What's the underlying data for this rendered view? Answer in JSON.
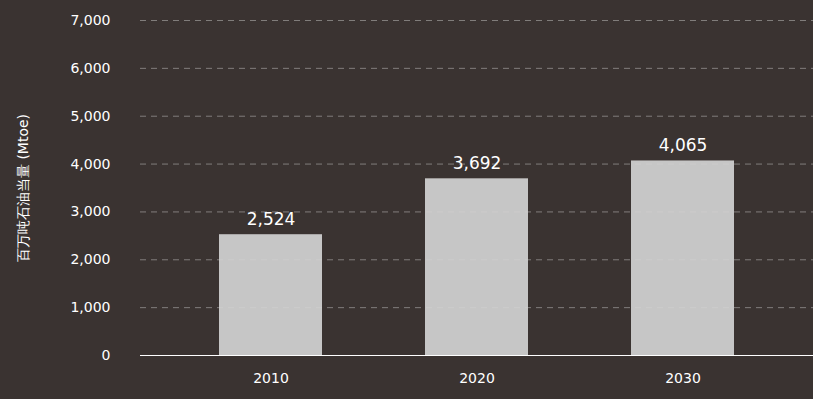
{
  "chart_data": {
    "type": "bar",
    "y_label": "百万吨石油当量 (Mtoe)",
    "categories": [
      "2010",
      "2020",
      "2030"
    ],
    "values": [
      2524,
      3692,
      4065
    ],
    "value_labels": [
      "2,524",
      "3,692",
      "4,065"
    ],
    "data_labels": true,
    "color": "#d2d2d2",
    "ylim": [
      0,
      7000
    ],
    "yticks": [
      0,
      1000,
      2000,
      3000,
      4000,
      5000,
      6000,
      7000
    ],
    "grid": true
  }
}
